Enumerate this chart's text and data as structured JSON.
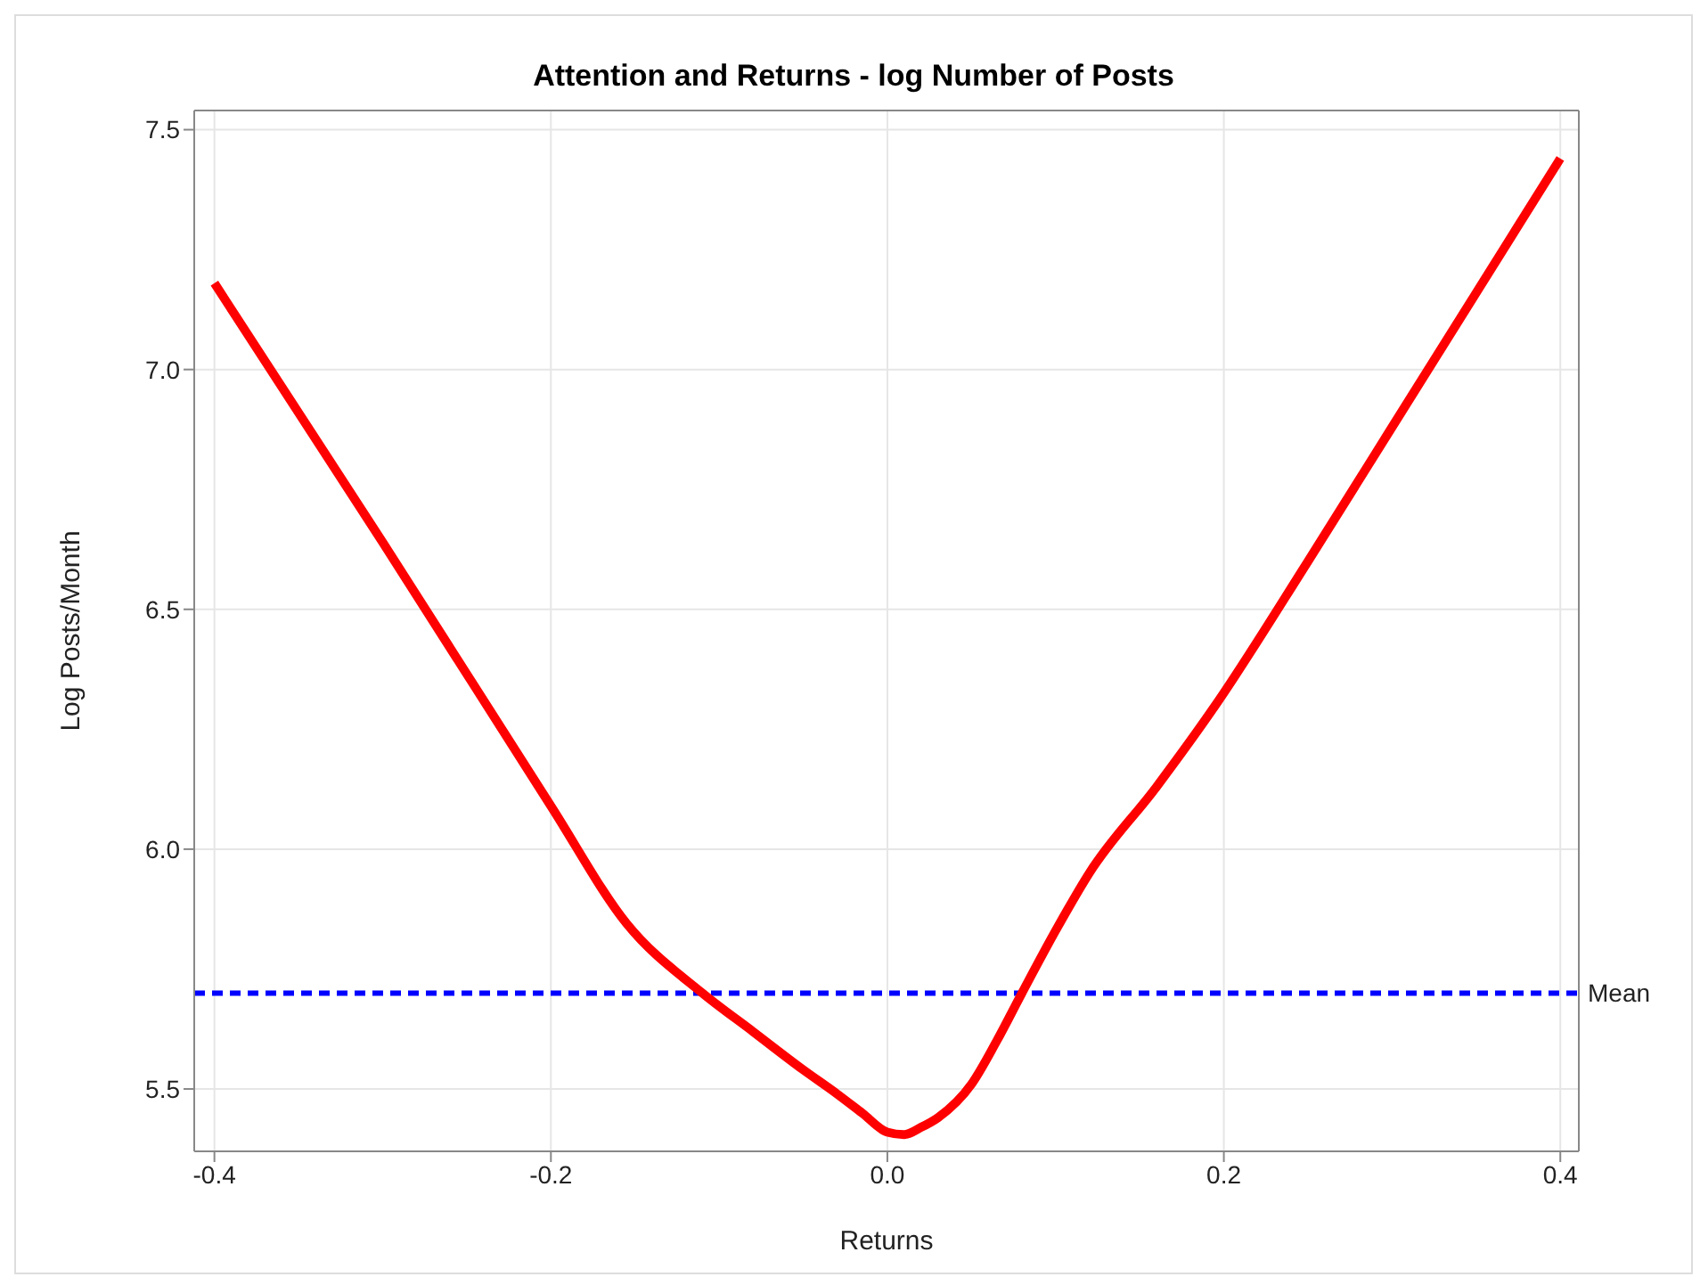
{
  "chart_data": {
    "type": "line",
    "title": "Attention and Returns - log Number of Posts",
    "xlabel": "Returns",
    "ylabel": "Log Posts/Month",
    "x": [
      -0.4,
      -0.3,
      -0.2,
      -0.155,
      -0.11,
      -0.08,
      -0.05,
      -0.03,
      -0.015,
      0,
      0.01,
      0.02,
      0.03,
      0.05,
      0.065,
      0.08,
      0.1,
      0.12,
      0.16,
      0.195,
      0.25,
      0.3,
      0.35,
      0.4
    ],
    "series": [
      {
        "color": "#ff0000",
        "values": [
          7.18,
          6.64,
          6.09,
          5.845,
          5.7,
          5.62,
          5.54,
          5.49,
          5.45,
          5.41,
          5.405,
          5.42,
          5.44,
          5.51,
          5.6,
          5.7,
          5.83,
          5.95,
          6.13,
          6.3,
          6.6,
          6.88,
          7.16,
          7.44
        ]
      }
    ],
    "xlim": [
      -0.412,
      0.411
    ],
    "xticks": [
      -0.4,
      -0.2,
      {
        "value": 0,
        "label": "0.0"
      },
      0.2,
      0.4
    ],
    "ylim": [
      5.37,
      7.54
    ],
    "yticks": [
      5.5,
      {
        "value": 6,
        "label": "6.0"
      },
      6.5,
      {
        "value": 7,
        "label": "7.0"
      },
      7.5
    ],
    "ref_lines": [
      {
        "axis": "y",
        "value": 5.7,
        "label": "Mean",
        "color": "#0000ff",
        "line_style": "dashed"
      }
    ],
    "grid": true,
    "legend": false,
    "marker": "none",
    "line_style": "solid"
  }
}
